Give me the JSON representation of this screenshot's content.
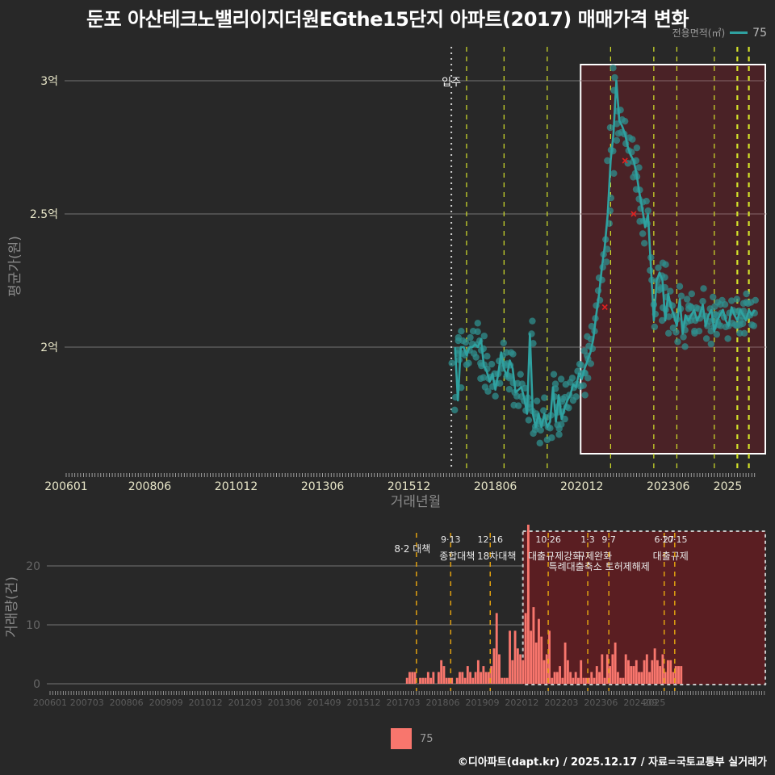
{
  "header": {
    "title": "둔포 아산테크노밸리이지더원EGthe15단지 아파트(2017) 매매가격 변화",
    "legend_title": "전용면적(㎡)",
    "legend_value": "75"
  },
  "footer": {
    "credit": "©디아파트(dapt.kr) / 2025.12.17 / 자료=국토교통부 실거래가",
    "legend_value": "75"
  },
  "colors": {
    "background": "#282828",
    "series": "#2fa1a0",
    "volume_bar": "#f8766d",
    "highlight_region": "#5a1e22",
    "policy_line_top": "#d4e22a",
    "policy_line_bottom": "#e0a010"
  },
  "chart_data": [
    {
      "type": "line",
      "title": "둔포 아산테크노밸리이지더원EGthe15단지 아파트(2017) 매매가격 변화",
      "xlabel": "거래년월",
      "ylabel": "평균가(원)",
      "x_ticks": [
        "200601",
        "200806",
        "201012",
        "201306",
        "201512",
        "201806",
        "202012",
        "202306",
        "2025"
      ],
      "y_ticks": [
        "2억",
        "2.5억",
        "3억"
      ],
      "ylim": [
        1.55,
        3.08
      ],
      "y_unit": "억원",
      "grid": true,
      "legend": {
        "title": "전용면적(㎡)",
        "entries": [
          "75"
        ],
        "position": "top-right"
      },
      "annotations": [
        {
          "label": "입주",
          "x": "201703"
        }
      ],
      "highlight_box": {
        "from": "202101",
        "to": "202512"
      },
      "series": [
        {
          "name": "75",
          "points": [
            [
              "201704",
              2.0
            ],
            [
              "201705",
              1.8
            ],
            [
              "201706",
              2.0
            ],
            [
              "201707",
              2.0
            ],
            [
              "201708",
              1.97
            ],
            [
              "201709",
              2.0
            ],
            [
              "201710",
              2.0
            ],
            [
              "201711",
              2.01
            ],
            [
              "201712",
              2.0
            ],
            [
              "201801",
              2.03
            ],
            [
              "201802",
              1.93
            ],
            [
              "201803",
              1.91
            ],
            [
              "201804",
              1.87
            ],
            [
              "201805",
              1.9
            ],
            [
              "201806",
              1.84
            ],
            [
              "201807",
              1.9
            ],
            [
              "201808",
              1.98
            ],
            [
              "201809",
              1.92
            ],
            [
              "201810",
              1.89
            ],
            [
              "201811",
              1.95
            ],
            [
              "201812",
              1.92
            ],
            [
              "201901",
              1.83
            ],
            [
              "201902",
              1.84
            ],
            [
              "201903",
              1.85
            ],
            [
              "201904",
              1.81
            ],
            [
              "201905",
              1.75
            ],
            [
              "201906",
              2.05
            ],
            [
              "201907",
              1.75
            ],
            [
              "201908",
              1.7
            ],
            [
              "201909",
              1.75
            ],
            [
              "201910",
              1.7
            ],
            [
              "201911",
              1.75
            ],
            [
              "201912",
              1.7
            ],
            [
              "202001",
              1.72
            ],
            [
              "202002",
              1.85
            ],
            [
              "202003",
              1.72
            ],
            [
              "202004",
              1.82
            ],
            [
              "202005",
              1.73
            ],
            [
              "202006",
              1.77
            ],
            [
              "202007",
              1.8
            ],
            [
              "202008",
              1.82
            ],
            [
              "202009",
              1.86
            ],
            [
              "202010",
              1.85
            ],
            [
              "202011",
              1.9
            ],
            [
              "202012",
              1.88
            ],
            [
              "202101",
              1.92
            ],
            [
              "202102",
              1.95
            ],
            [
              "202103",
              1.98
            ],
            [
              "202104",
              2.03
            ],
            [
              "202105",
              2.12
            ],
            [
              "202106",
              2.2
            ],
            [
              "202107",
              2.3
            ],
            [
              "202108",
              2.38
            ],
            [
              "202109",
              2.5
            ],
            [
              "202110",
              2.7
            ],
            [
              "202111",
              2.8
            ],
            [
              "202112",
              3.0
            ],
            [
              "202201",
              2.85
            ],
            [
              "202202",
              2.83
            ],
            [
              "202203",
              2.8
            ],
            [
              "202204",
              2.75
            ],
            [
              "202205",
              2.72
            ],
            [
              "202206",
              2.7
            ],
            [
              "202207",
              2.65
            ],
            [
              "202208",
              2.58
            ],
            [
              "202209",
              2.52
            ],
            [
              "202210",
              2.45
            ],
            [
              "202211",
              2.5
            ],
            [
              "202212",
              2.3
            ],
            [
              "202301",
              2.1
            ],
            [
              "202302",
              2.25
            ],
            [
              "202303",
              2.28
            ],
            [
              "202304",
              2.25
            ],
            [
              "202305",
              2.1
            ],
            [
              "202306",
              2.2
            ],
            [
              "202307",
              2.15
            ],
            [
              "202308",
              2.12
            ],
            [
              "202309",
              2.08
            ],
            [
              "202310",
              2.18
            ],
            [
              "202311",
              2.05
            ],
            [
              "202312",
              2.12
            ],
            [
              "202401",
              2.1
            ],
            [
              "202402",
              2.12
            ],
            [
              "202403",
              2.14
            ],
            [
              "202404",
              2.1
            ],
            [
              "202405",
              2.12
            ],
            [
              "202406",
              2.16
            ],
            [
              "202407",
              2.08
            ],
            [
              "202408",
              2.12
            ],
            [
              "202409",
              2.14
            ],
            [
              "202410",
              2.06
            ],
            [
              "202411",
              2.1
            ],
            [
              "202412",
              2.12
            ],
            [
              "202501",
              2.14
            ],
            [
              "202502",
              2.1
            ],
            [
              "202503",
              2.08
            ],
            [
              "202504",
              2.15
            ],
            [
              "202505",
              2.12
            ],
            [
              "202506",
              2.1
            ],
            [
              "202507",
              2.14
            ],
            [
              "202508",
              2.12
            ],
            [
              "202509",
              2.1
            ],
            [
              "202510",
              2.14
            ],
            [
              "202511",
              2.12
            ],
            [
              "202512",
              2.14
            ]
          ]
        }
      ],
      "policy_lines": [
        "201708",
        "201809",
        "201912",
        "202110",
        "202301",
        "202309",
        "202410",
        "202506",
        "202510"
      ]
    },
    {
      "type": "bar",
      "title": "거래량",
      "xlabel": "",
      "ylabel": "거래량(건)",
      "x_ticks": [
        "200601",
        "200703",
        "200806",
        "200909",
        "201012",
        "201203",
        "201306",
        "201409",
        "201512",
        "201703",
        "201806",
        "201909",
        "202012",
        "202203",
        "202306",
        "202409",
        "2025"
      ],
      "y_ticks": [
        "0",
        "10",
        "20"
      ],
      "ylim": [
        0,
        27
      ],
      "grid": true,
      "legend": {
        "entries": [
          "75"
        ],
        "position": "bottom"
      },
      "highlight_box": {
        "from": "202101",
        "to": "202512"
      },
      "policy_annotations": [
        {
          "date": "201708",
          "line1": "",
          "line2": "8·2 대책"
        },
        {
          "date": "201809",
          "line1": "9·13",
          "line2": "종합대책"
        },
        {
          "date": "201912",
          "line1": "12·16",
          "line2": "18차대책"
        },
        {
          "date": "202110",
          "line1": "10·26",
          "line2": "대출규제강화"
        },
        {
          "date": "202301",
          "line1": "1·3",
          "line2": "규제완화"
        },
        {
          "date": "202309",
          "line1": "9·7",
          "line2": "특례대출축소 토허제해제"
        },
        {
          "date": "202506",
          "line1": "6·27",
          "line2": "대출규제"
        },
        {
          "date": "202510",
          "line1": "10·15",
          "line2": ""
        }
      ],
      "series": [
        {
          "name": "75",
          "values": [
            [
              "201704",
              1
            ],
            [
              "201705",
              2
            ],
            [
              "201706",
              2
            ],
            [
              "201707",
              2
            ],
            [
              "201709",
              1
            ],
            [
              "201710",
              1
            ],
            [
              "201711",
              1
            ],
            [
              "201712",
              2
            ],
            [
              "201801",
              1
            ],
            [
              "201802",
              2
            ],
            [
              "201804",
              2
            ],
            [
              "201805",
              4
            ],
            [
              "201806",
              3
            ],
            [
              "201807",
              1
            ],
            [
              "201808",
              1
            ],
            [
              "201809",
              1
            ],
            [
              "201811",
              1
            ],
            [
              "201812",
              2
            ],
            [
              "201901",
              2
            ],
            [
              "201902",
              1
            ],
            [
              "201903",
              3
            ],
            [
              "201904",
              2
            ],
            [
              "201905",
              1
            ],
            [
              "201906",
              2
            ],
            [
              "201907",
              4
            ],
            [
              "201908",
              2
            ],
            [
              "201909",
              3
            ],
            [
              "201910",
              2
            ],
            [
              "201911",
              2
            ],
            [
              "201912",
              3
            ],
            [
              "202001",
              6
            ],
            [
              "202002",
              12
            ],
            [
              "202003",
              5
            ],
            [
              "202004",
              1
            ],
            [
              "202005",
              1
            ],
            [
              "202006",
              1
            ],
            [
              "202007",
              9
            ],
            [
              "202008",
              4
            ],
            [
              "202009",
              9
            ],
            [
              "202010",
              6
            ],
            [
              "202011",
              5
            ],
            [
              "202012",
              4
            ],
            [
              "202101",
              12
            ],
            [
              "202102",
              27
            ],
            [
              "202103",
              9
            ],
            [
              "202104",
              13
            ],
            [
              "202105",
              7
            ],
            [
              "202106",
              11
            ],
            [
              "202107",
              8
            ],
            [
              "202108",
              4
            ],
            [
              "202109",
              5
            ],
            [
              "202110",
              9
            ],
            [
              "202111",
              1
            ],
            [
              "202112",
              2
            ],
            [
              "202201",
              2
            ],
            [
              "202202",
              3
            ],
            [
              "202203",
              1
            ],
            [
              "202204",
              7
            ],
            [
              "202205",
              4
            ],
            [
              "202206",
              2
            ],
            [
              "202207",
              1
            ],
            [
              "202208",
              2
            ],
            [
              "202209",
              1
            ],
            [
              "202210",
              4
            ],
            [
              "202211",
              1
            ],
            [
              "202212",
              1
            ],
            [
              "202301",
              1
            ],
            [
              "202302",
              2
            ],
            [
              "202303",
              1
            ],
            [
              "202304",
              3
            ],
            [
              "202305",
              2
            ],
            [
              "202306",
              5
            ],
            [
              "202307",
              1
            ],
            [
              "202308",
              5
            ],
            [
              "202309",
              3
            ],
            [
              "202310",
              5
            ],
            [
              "202311",
              7
            ],
            [
              "202312",
              2
            ],
            [
              "202401",
              1
            ],
            [
              "202402",
              1
            ],
            [
              "202403",
              5
            ],
            [
              "202404",
              4
            ],
            [
              "202405",
              3
            ],
            [
              "202406",
              3
            ],
            [
              "202407",
              4
            ],
            [
              "202408",
              2
            ],
            [
              "202409",
              2
            ],
            [
              "202410",
              4
            ],
            [
              "202411",
              5
            ],
            [
              "202412",
              2
            ],
            [
              "202501",
              4
            ],
            [
              "202502",
              6
            ],
            [
              "202503",
              4
            ],
            [
              "202504",
              3
            ],
            [
              "202505",
              5
            ],
            [
              "202506",
              2
            ],
            [
              "202507",
              4
            ],
            [
              "202508",
              4
            ],
            [
              "202509",
              2
            ],
            [
              "202510",
              3
            ],
            [
              "202511",
              3
            ],
            [
              "202512",
              3
            ]
          ]
        }
      ]
    }
  ]
}
